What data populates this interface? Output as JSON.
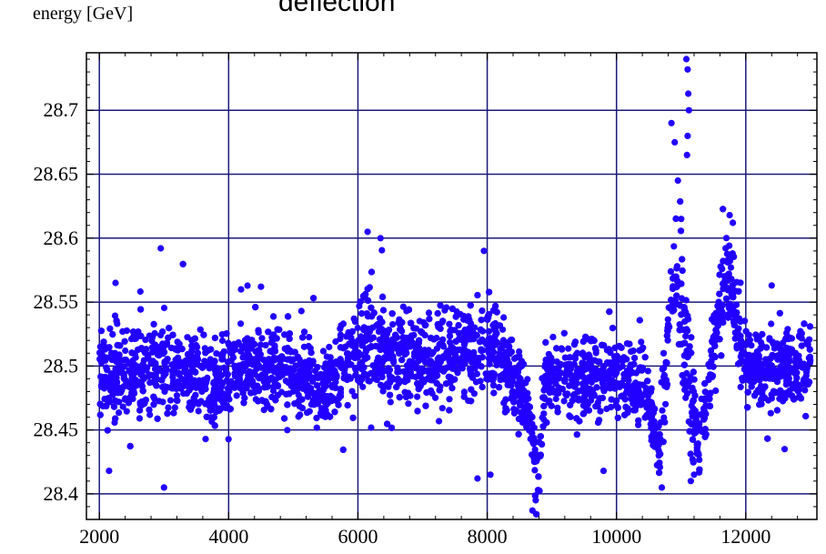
{
  "page": {
    "title": "deflection"
  },
  "chart_data": {
    "type": "scatter",
    "title": "deflection",
    "xlabel": "",
    "ylabel": "energy [GeV]",
    "xlim": [
      1800,
      13100
    ],
    "ylim": [
      28.38,
      28.745
    ],
    "xticks": [
      2000,
      4000,
      6000,
      8000,
      10000,
      12000
    ],
    "yticks": [
      28.4,
      28.45,
      28.5,
      28.55,
      28.6,
      28.65,
      28.7
    ],
    "ytick_labels": [
      "28.4",
      "28.45",
      "28.5",
      "28.55",
      "28.6",
      "28.65",
      "28.7"
    ],
    "grid": true,
    "colors": {
      "points": "#2200ff",
      "grid": "#1a1a7a",
      "frame": "#000000"
    },
    "series": [
      {
        "profile": [
          [
            2000,
            28.495,
            0.027
          ],
          [
            2500,
            28.496,
            0.027
          ],
          [
            3000,
            28.497,
            0.028
          ],
          [
            3500,
            28.495,
            0.027
          ],
          [
            3800,
            28.49,
            0.027
          ],
          [
            4200,
            28.5,
            0.026
          ],
          [
            4600,
            28.498,
            0.026
          ],
          [
            5000,
            28.495,
            0.025
          ],
          [
            5400,
            28.48,
            0.024
          ],
          [
            5800,
            28.5,
            0.027
          ],
          [
            6100,
            28.52,
            0.03
          ],
          [
            6300,
            28.52,
            0.034
          ],
          [
            6500,
            28.505,
            0.028
          ],
          [
            7000,
            28.505,
            0.027
          ],
          [
            7400,
            28.505,
            0.028
          ],
          [
            7800,
            28.515,
            0.03
          ],
          [
            8100,
            28.515,
            0.03
          ],
          [
            8400,
            28.495,
            0.025
          ],
          [
            8650,
            28.46,
            0.02
          ],
          [
            8800,
            28.42,
            0.02
          ],
          [
            8900,
            28.49,
            0.026
          ],
          [
            9500,
            28.49,
            0.026
          ],
          [
            10000,
            28.49,
            0.026
          ],
          [
            10500,
            28.485,
            0.026
          ],
          [
            10650,
            28.43,
            0.018
          ],
          [
            10800,
            28.52,
            0.03
          ],
          [
            10900,
            28.57,
            0.03
          ],
          [
            11000,
            28.54,
            0.04
          ],
          [
            11100,
            28.5,
            0.04
          ],
          [
            11250,
            28.44,
            0.025
          ],
          [
            11400,
            28.47,
            0.018
          ],
          [
            11550,
            28.53,
            0.025
          ],
          [
            11700,
            28.58,
            0.025
          ],
          [
            11850,
            28.54,
            0.03
          ],
          [
            12000,
            28.5,
            0.024
          ],
          [
            12500,
            28.5,
            0.024
          ],
          [
            13000,
            28.5,
            0.024
          ]
        ],
        "count": 5200,
        "outliers": [
          [
            2250,
            28.565
          ],
          [
            2950,
            28.592
          ],
          [
            3000,
            28.405
          ],
          [
            2150,
            28.418
          ],
          [
            4500,
            28.562
          ],
          [
            6150,
            28.605
          ],
          [
            6350,
            28.6
          ],
          [
            7850,
            28.412
          ],
          [
            7950,
            28.59
          ],
          [
            8700,
            28.387
          ],
          [
            8750,
            28.395
          ],
          [
            10850,
            28.69
          ],
          [
            10900,
            28.675
          ],
          [
            10950,
            28.645
          ],
          [
            11000,
            28.615
          ],
          [
            11080,
            28.74
          ],
          [
            11100,
            28.732
          ],
          [
            11110,
            28.713
          ],
          [
            11120,
            28.7
          ],
          [
            11100,
            28.68
          ],
          [
            11090,
            28.665
          ],
          [
            11150,
            28.41
          ],
          [
            11200,
            28.415
          ],
          [
            10700,
            28.405
          ],
          [
            12400,
            28.563
          ],
          [
            12600,
            28.435
          ],
          [
            11750,
            28.618
          ],
          [
            11800,
            28.612
          ],
          [
            9800,
            28.418
          ],
          [
            8050,
            28.415
          ]
        ]
      }
    ]
  }
}
